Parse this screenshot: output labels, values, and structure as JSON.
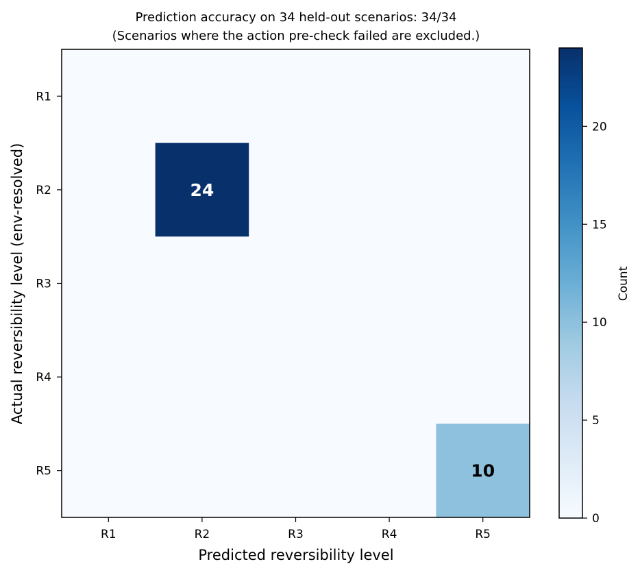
{
  "chart_data": {
    "type": "heatmap",
    "title": "Prediction accuracy on 34 held-out scenarios: 34/34",
    "subtitle": "(Scenarios where the action pre-check failed are excluded.)",
    "xlabel": "Predicted reversibility level",
    "ylabel": "Actual reversibility level (env-resolved)",
    "x_categories": [
      "R1",
      "R2",
      "R3",
      "R4",
      "R5"
    ],
    "y_categories": [
      "R1",
      "R2",
      "R3",
      "R4",
      "R5"
    ],
    "matrix": [
      [
        0,
        0,
        0,
        0,
        0
      ],
      [
        0,
        24,
        0,
        0,
        0
      ],
      [
        0,
        0,
        0,
        0,
        0
      ],
      [
        0,
        0,
        0,
        0,
        0
      ],
      [
        0,
        0,
        0,
        0,
        10
      ]
    ],
    "cell_labels": [
      {
        "row": "R2",
        "col": "R2",
        "text": "24"
      },
      {
        "row": "R5",
        "col": "R5",
        "text": "10"
      }
    ],
    "colorbar": {
      "label": "Count",
      "range": [
        0,
        24
      ],
      "ticks": [
        0,
        5,
        10,
        15,
        20
      ],
      "colormap": "Blues"
    },
    "grid": false
  }
}
